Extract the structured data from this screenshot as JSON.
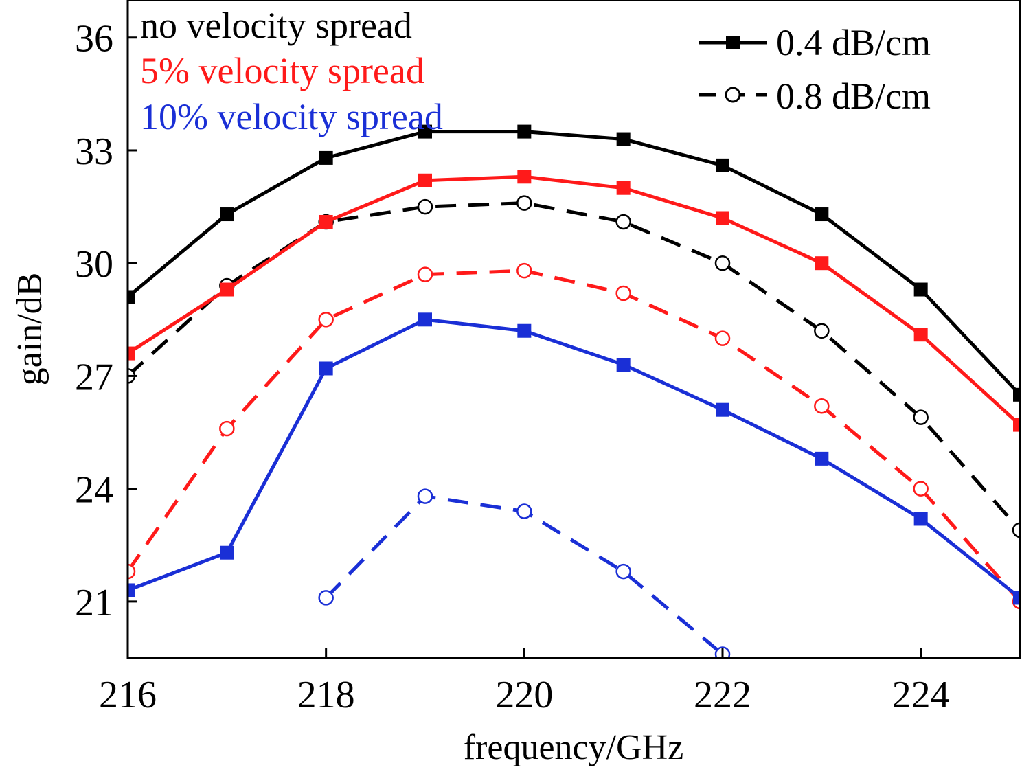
{
  "chart_data": {
    "type": "line",
    "title": "",
    "xlabel": "frequency/GHz",
    "ylabel": "gain/dB",
    "xlim": [
      216,
      225
    ],
    "ylim": [
      19.5,
      37
    ],
    "x_ticks": [
      216,
      218,
      220,
      222,
      224
    ],
    "y_ticks": [
      21,
      24,
      27,
      30,
      33,
      36
    ],
    "grid": false,
    "legend_position": "top-right",
    "legend": [
      {
        "label": "0.4 dB/cm",
        "style": "solid",
        "marker": "filled-square"
      },
      {
        "label": "0.8 dB/cm",
        "style": "dashed",
        "marker": "open-circle"
      }
    ],
    "annotations": [
      {
        "text": "no velocity spread",
        "color": "#000000"
      },
      {
        "text": "5% velocity spread",
        "color": "#ff1a1a"
      },
      {
        "text": "10% velocity spread",
        "color": "#1a2fd6"
      }
    ],
    "series": [
      {
        "spread": "no velocity spread",
        "loss": "0.4 dB/cm",
        "color": "#000000",
        "style": "solid",
        "marker": "square",
        "x": [
          216,
          217,
          218,
          219,
          220,
          221,
          222,
          223,
          224,
          225
        ],
        "y": [
          29.1,
          31.3,
          32.8,
          33.5,
          33.5,
          33.3,
          32.6,
          31.3,
          29.3,
          26.5
        ]
      },
      {
        "spread": "no velocity spread",
        "loss": "0.8 dB/cm",
        "color": "#000000",
        "style": "dashed",
        "marker": "circle",
        "x": [
          216,
          217,
          218,
          219,
          220,
          221,
          222,
          223,
          224,
          225
        ],
        "y": [
          27.0,
          29.4,
          31.1,
          31.5,
          31.6,
          31.1,
          30.0,
          28.2,
          25.9,
          22.9
        ]
      },
      {
        "spread": "5% velocity spread",
        "loss": "0.4 dB/cm",
        "color": "#ff1a1a",
        "style": "solid",
        "marker": "square",
        "x": [
          216,
          217,
          218,
          219,
          220,
          221,
          222,
          223,
          224,
          225
        ],
        "y": [
          27.6,
          29.3,
          31.1,
          32.2,
          32.3,
          32.0,
          31.2,
          30.0,
          28.1,
          25.7
        ]
      },
      {
        "spread": "5% velocity spread",
        "loss": "0.8 dB/cm",
        "color": "#ff1a1a",
        "style": "dashed",
        "marker": "circle",
        "x": [
          216,
          217,
          218,
          219,
          220,
          221,
          222,
          223,
          224,
          225
        ],
        "y": [
          21.8,
          25.6,
          28.5,
          29.7,
          29.8,
          29.2,
          28.0,
          26.2,
          24.0,
          21.0
        ]
      },
      {
        "spread": "10% velocity spread",
        "loss": "0.4 dB/cm",
        "color": "#1a2fd6",
        "style": "solid",
        "marker": "square",
        "x": [
          216,
          217,
          218,
          219,
          220,
          221,
          222,
          223,
          224,
          225
        ],
        "y": [
          21.3,
          22.3,
          27.2,
          28.5,
          28.2,
          27.3,
          26.1,
          24.8,
          23.2,
          21.1
        ]
      },
      {
        "spread": "10% velocity spread",
        "loss": "0.8 dB/cm",
        "color": "#1a2fd6",
        "style": "dashed",
        "marker": "circle",
        "x": [
          218,
          219,
          220,
          221,
          222
        ],
        "y": [
          21.1,
          23.8,
          23.4,
          21.8,
          19.6
        ]
      }
    ]
  }
}
